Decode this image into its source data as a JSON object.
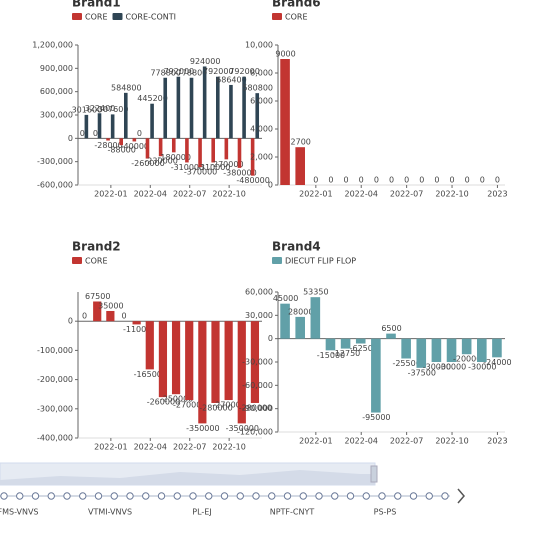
{
  "chart_data": [
    {
      "type": "bar",
      "title": "Brand1",
      "categories": [
        null,
        null,
        "2022-01",
        null,
        null,
        "2022-04",
        null,
        null,
        "2022-07",
        null,
        null,
        "2022-10",
        null,
        null
      ],
      "series": [
        {
          "name": "CORE",
          "color": "#c23531",
          "values": [
            0,
            0,
            -28000,
            -88000,
            -40000,
            -260000,
            -230000,
            -180000,
            -310000,
            -370000,
            -310000,
            -270000,
            -380000,
            -480000
          ]
        },
        {
          "name": "CORE-CONTI",
          "color": "#2f4554",
          "values": [
            301600,
            322400,
            307600,
            584800,
            0,
            445200,
            778800,
            792000,
            778800,
            924000,
            792000,
            686400,
            792000,
            580800
          ]
        }
      ],
      "ylim": [
        -600000,
        1200000
      ],
      "yticks": [
        {
          "value": 1200000,
          "label": "1,200,000"
        },
        {
          "value": 900000,
          "label": "900,000"
        },
        {
          "value": 600000,
          "label": "600,000"
        },
        {
          "value": 300000,
          "label": "300,000"
        },
        0,
        {
          "value": -300000,
          "label": "-300,000"
        },
        {
          "value": -600000,
          "label": "-600,000"
        }
      ]
    },
    {
      "type": "bar",
      "title": "Brand6",
      "categories": [
        null,
        null,
        "2022-01",
        null,
        null,
        "2022-04",
        null,
        null,
        "2022-07",
        null,
        null,
        "2022-10",
        null,
        null,
        "2023"
      ],
      "series": [
        {
          "name": "CORE",
          "color": "#c23531",
          "values": [
            9000,
            2700,
            0,
            0,
            0,
            0,
            0,
            0,
            0,
            0,
            0,
            0,
            0,
            0,
            0
          ]
        }
      ],
      "ylim": [
        0,
        10000
      ],
      "yticks": [
        {
          "value": 10000,
          "label": "10,000"
        },
        {
          "value": 8000,
          "label": "8,000"
        },
        {
          "value": 6000,
          "label": "6,000"
        },
        {
          "value": 4000,
          "label": "4,000"
        },
        {
          "value": 2000,
          "label": "2,000"
        },
        0
      ]
    },
    {
      "type": "bar",
      "title": "Brand2",
      "categories": [
        null,
        null,
        "2022-01",
        null,
        null,
        "2022-04",
        null,
        null,
        "2022-07",
        null,
        null,
        "2022-10",
        null,
        null
      ],
      "series": [
        {
          "name": "CORE",
          "color": "#c23531",
          "values": [
            0,
            67500,
            35000,
            0,
            -11000,
            -165000,
            -260000,
            -250000,
            -270000,
            -350000,
            -280000,
            -270000,
            -350000,
            -280000
          ]
        }
      ],
      "ylim": [
        -400000,
        100000
      ],
      "yticks": [
        0,
        {
          "value": -100000,
          "label": "-100,000"
        },
        {
          "value": -200000,
          "label": "-200,000"
        },
        {
          "value": -300000,
          "label": "-300,000"
        },
        {
          "value": -400000,
          "label": "-400,000"
        }
      ]
    },
    {
      "type": "bar",
      "title": "Brand4",
      "categories": [
        null,
        null,
        "2022-01",
        null,
        null,
        "2022-04",
        null,
        null,
        "2022-07",
        null,
        null,
        "2022-10",
        null,
        null,
        "2023"
      ],
      "series": [
        {
          "name": "DIECUT FLIP FLOP",
          "color": "#61a0a8",
          "values": [
            45000,
            28000,
            53350,
            -15000,
            -12750,
            -6250,
            -95000,
            6500,
            -25500,
            -37500,
            -30000,
            -30000,
            -20000,
            -30000,
            -24000
          ]
        }
      ],
      "ylim": [
        -120000,
        60000
      ],
      "yticks": [
        {
          "value": 60000,
          "label": "60,000"
        },
        {
          "value": 30000,
          "label": "30,000"
        },
        0,
        {
          "value": -30000,
          "label": "-30,000"
        },
        {
          "value": -60000,
          "label": "-60,000"
        },
        {
          "value": -90000,
          "label": "-90,000"
        },
        {
          "value": -120000,
          "label": "-120,000"
        }
      ]
    }
  ],
  "timeline": {
    "labels": [
      "FMS-VNVS",
      "VTMI-VNVS",
      "PL-EJ",
      "NPTF-CNYT",
      "PS-PS"
    ]
  }
}
